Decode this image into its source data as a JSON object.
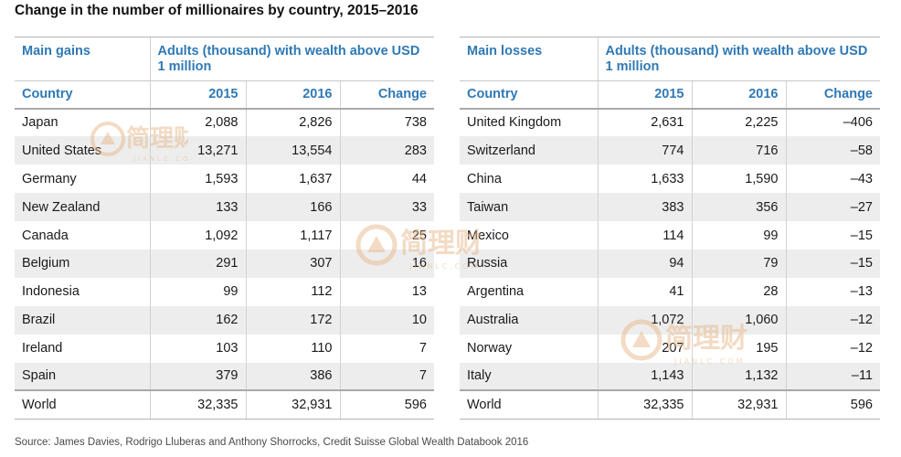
{
  "title": "Change in the number of millionaires by country, 2015–2016",
  "source": "Source: James Davies, Rodrigo Lluberas and Anthony Shorrocks, Credit Suisse Global Wealth Databook 2016",
  "watermark": {
    "text": "简理财",
    "sub": "JIANLC.COM",
    "color": "#e8b88a"
  },
  "colors": {
    "header_blue": "#2f79b5",
    "band_gray": "#ededed"
  },
  "chart_data": [
    {
      "type": "table",
      "group_label": "Main gains",
      "measure_label": "Adults (thousand) with wealth above USD 1 million",
      "columns": [
        "Country",
        "2015",
        "2016",
        "Change"
      ],
      "rows": [
        [
          "Japan",
          "2,088",
          "2,826",
          "738"
        ],
        [
          "United States",
          "13,271",
          "13,554",
          "283"
        ],
        [
          "Germany",
          "1,593",
          "1,637",
          "44"
        ],
        [
          "New Zealand",
          "133",
          "166",
          "33"
        ],
        [
          "Canada",
          "1,092",
          "1,117",
          "25"
        ],
        [
          "Belgium",
          "291",
          "307",
          "16"
        ],
        [
          "Indonesia",
          "99",
          "112",
          "13"
        ],
        [
          "Brazil",
          "162",
          "172",
          "10"
        ],
        [
          "Ireland",
          "103",
          "110",
          "7"
        ],
        [
          "Spain",
          "379",
          "386",
          "7"
        ]
      ],
      "total": [
        "World",
        "32,335",
        "32,931",
        "596"
      ]
    },
    {
      "type": "table",
      "group_label": "Main losses",
      "measure_label": "Adults (thousand) with wealth above USD 1 million",
      "columns": [
        "Country",
        "2015",
        "2016",
        "Change"
      ],
      "rows": [
        [
          "United Kingdom",
          "2,631",
          "2,225",
          "–406"
        ],
        [
          "Switzerland",
          "774",
          "716",
          "–58"
        ],
        [
          "China",
          "1,633",
          "1,590",
          "–43"
        ],
        [
          "Taiwan",
          "383",
          "356",
          "–27"
        ],
        [
          "Mexico",
          "114",
          "99",
          "–15"
        ],
        [
          "Russia",
          "94",
          "79",
          "–15"
        ],
        [
          "Argentina",
          "41",
          "28",
          "–13"
        ],
        [
          "Australia",
          "1,072",
          "1,060",
          "–12"
        ],
        [
          "Norway",
          "207",
          "195",
          "–12"
        ],
        [
          "Italy",
          "1,143",
          "1,132",
          "–11"
        ]
      ],
      "total": [
        "World",
        "32,335",
        "32,931",
        "596"
      ]
    }
  ]
}
